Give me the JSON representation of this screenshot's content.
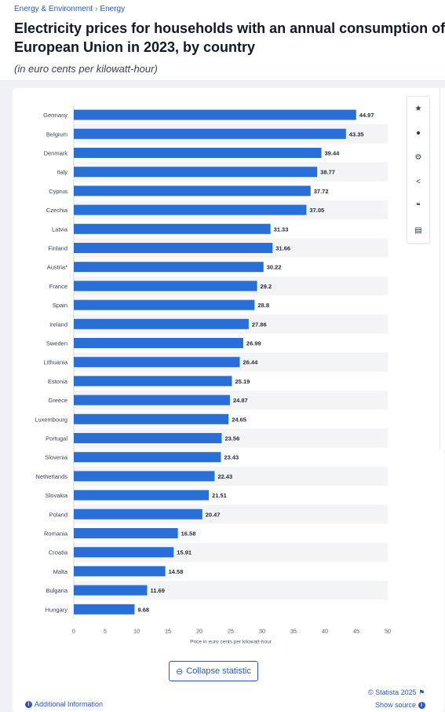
{
  "breadcrumb": {
    "items": [
      "Energy & Environment",
      "Energy"
    ],
    "separator": "›"
  },
  "header": {
    "title_line1": "Electricity prices for households with an annual consumption of",
    "title_line2": "European Union in 2023, by country",
    "subtitle": "(in euro cents per kilowatt-hour)"
  },
  "toolbar": {
    "icons": [
      {
        "name": "star-icon",
        "glyph": "★"
      },
      {
        "name": "bell-icon",
        "glyph": "●"
      },
      {
        "name": "gear-icon",
        "glyph": "⚙"
      },
      {
        "name": "share-icon",
        "glyph": "<"
      },
      {
        "name": "quote-icon",
        "glyph": "❝"
      },
      {
        "name": "print-icon",
        "glyph": "▤"
      }
    ]
  },
  "chart_data": {
    "type": "bar",
    "orientation": "horizontal",
    "categories": [
      "Germany",
      "Belgium",
      "Denmark",
      "Italy",
      "Cyprus",
      "Czechia",
      "Latvia",
      "Finland",
      "Austria*",
      "France",
      "Spain",
      "Ireland",
      "Sweden",
      "Lithuania",
      "Estonia",
      "Greece",
      "Luxembourg",
      "Portugal",
      "Slovenia",
      "Netherlands",
      "Slovakia",
      "Poland",
      "Romania",
      "Croatia",
      "Malta",
      "Bulgaria",
      "Hungary"
    ],
    "values": [
      44.97,
      43.35,
      39.44,
      38.77,
      37.72,
      37.05,
      31.33,
      31.66,
      30.22,
      29.2,
      28.8,
      27.86,
      26.99,
      26.44,
      25.19,
      24.87,
      24.65,
      23.56,
      23.43,
      22.43,
      21.51,
      20.47,
      16.58,
      15.91,
      14.58,
      11.69,
      9.68
    ],
    "value_labels": [
      "44.97",
      "43.35",
      "39.44",
      "38.77",
      "37.72",
      "37.05",
      "31.33",
      "31.66",
      "30.22",
      "29.2",
      "28.8",
      "27.86",
      "26.99",
      "26.44",
      "25.19",
      "24.87",
      "24.65",
      "23.56",
      "23.43",
      "22.43",
      "21.51",
      "20.47",
      "16.58",
      "15.91",
      "14.58",
      "11.69",
      "9.68"
    ],
    "xlabel": "Price in euro cents per kilowatt-hour",
    "xlim": [
      0,
      50
    ],
    "xticks": [
      0,
      5,
      10,
      15,
      20,
      25,
      30,
      35,
      40,
      45,
      50
    ],
    "grid": "alternating row bands",
    "bar_color": "#2a6ed8"
  },
  "footer": {
    "collapse_label": "Collapse statistic",
    "copyright": "© Statista 2025 ⚑",
    "show_source": "Show source",
    "additional_info": "Additional Information"
  }
}
